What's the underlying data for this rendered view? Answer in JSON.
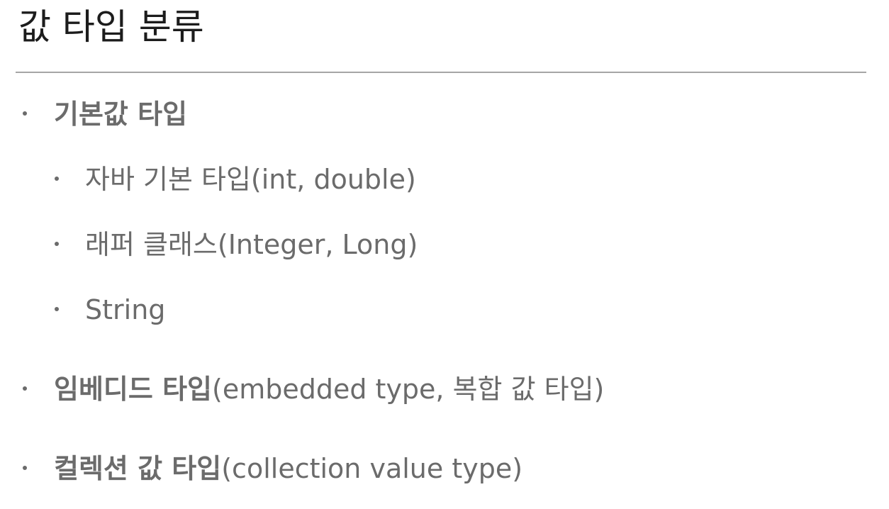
{
  "slide": {
    "title": "값 타입 분류",
    "items": [
      {
        "bold": "기본값 타입",
        "rest": ""
      },
      {
        "bold": "",
        "rest": "자바 기본 타입(int, double)"
      },
      {
        "bold": "",
        "rest": "래퍼 클래스(Integer, Long)"
      },
      {
        "bold": "",
        "rest": "String"
      },
      {
        "bold": "임베디드 타입",
        "rest": "(embedded type, 복합 값 타입)"
      },
      {
        "bold": "컬렉션 값 타입",
        "rest": "(collection value type)"
      }
    ]
  },
  "colors": {
    "title": "#1c1c1c",
    "body": "#6b6b6b",
    "divider": "#a6a6a6"
  }
}
